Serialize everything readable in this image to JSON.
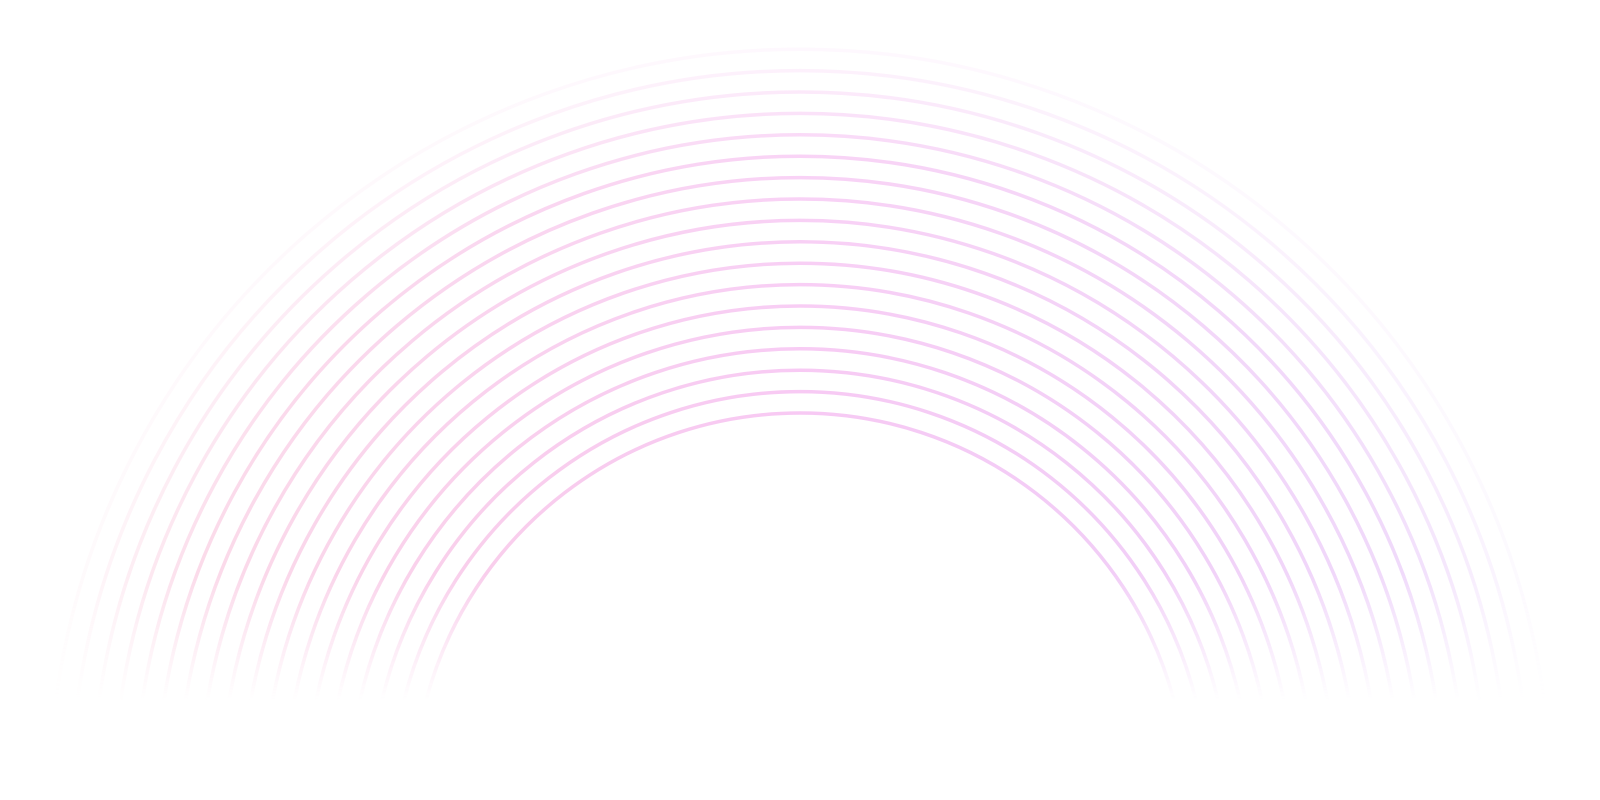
{
  "background": {
    "type": "concentric-arcs",
    "ring_count": 18,
    "colors": {
      "left": "#fbd3e0",
      "center": "#f7c6f3",
      "right": "#e9d2fb",
      "background": "#ffffff"
    }
  }
}
